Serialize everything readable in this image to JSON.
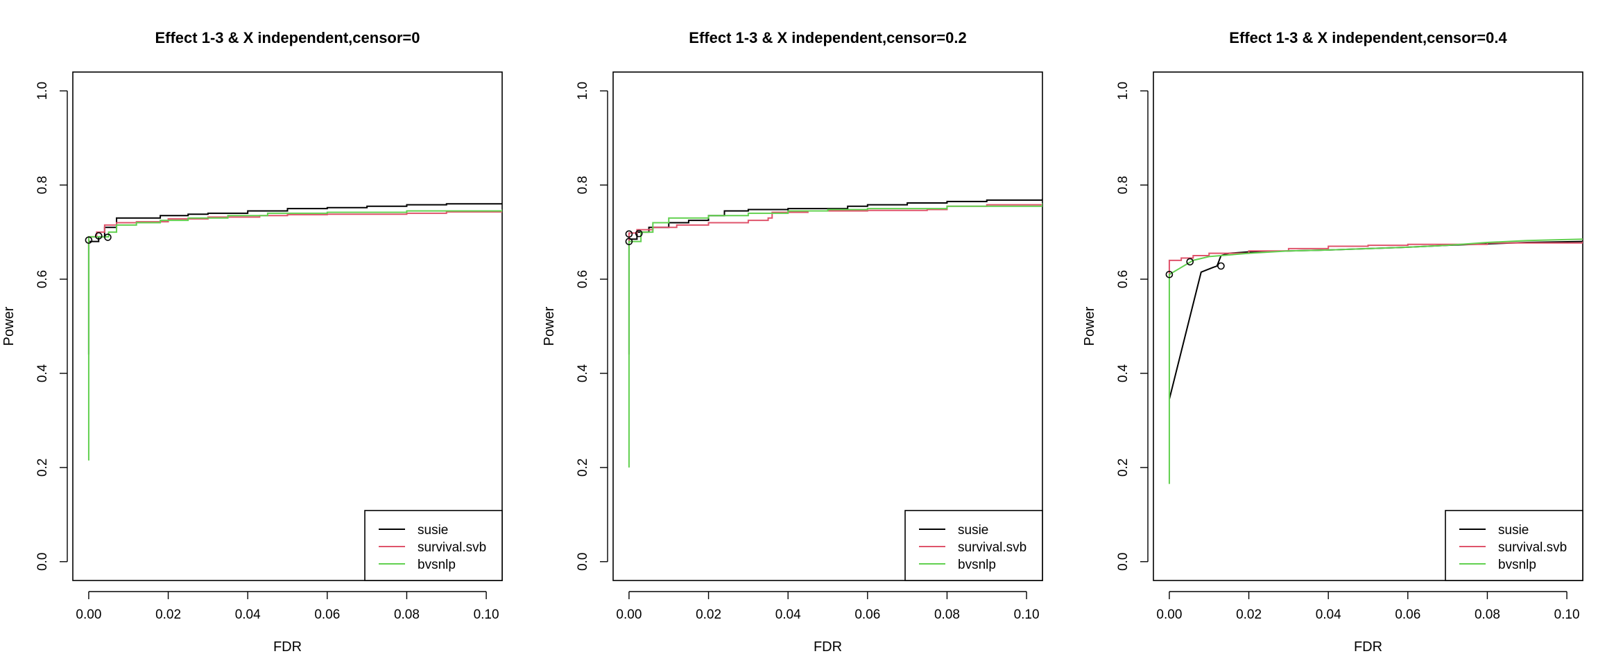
{
  "colors": {
    "susie": "#000000",
    "survival.svb": "#DF536B",
    "bvsnlp": "#61D04F"
  },
  "chart_data": [
    {
      "type": "line",
      "title": "Effect 1-3 & X independent,censor=0",
      "xlabel": "FDR",
      "ylabel": "Power",
      "xlim": [
        -0.004,
        0.104
      ],
      "ylim": [
        -0.04,
        1.04
      ],
      "xticks": [
        0.0,
        0.02,
        0.04,
        0.06,
        0.08,
        0.1
      ],
      "xtick_labels": [
        "0.00",
        "0.02",
        "0.04",
        "0.06",
        "0.08",
        "0.10"
      ],
      "yticks": [
        0.0,
        0.2,
        0.4,
        0.6,
        0.8,
        1.0
      ],
      "ytick_labels": [
        "0.0",
        "0.2",
        "0.4",
        "0.6",
        "0.8",
        "1.0"
      ],
      "grid": false,
      "legend_position": "bottom-right",
      "series": [
        {
          "name": "susie",
          "color": "#000000",
          "step": true,
          "x": [
            0.0,
            0.0,
            0.0015,
            0.0025,
            0.004,
            0.007,
            0.018,
            0.025,
            0.03,
            0.04,
            0.05,
            0.06,
            0.07,
            0.08,
            0.09,
            0.104
          ],
          "y": [
            0.44,
            0.68,
            0.68,
            0.69,
            0.71,
            0.73,
            0.735,
            0.738,
            0.74,
            0.745,
            0.75,
            0.752,
            0.755,
            0.758,
            0.76,
            0.762
          ]
        },
        {
          "name": "survival.svb",
          "color": "#DF536B",
          "step": true,
          "x": [
            0.0,
            0.0,
            0.002,
            0.004,
            0.007,
            0.012,
            0.02,
            0.03,
            0.043,
            0.05,
            0.06,
            0.08,
            0.09,
            0.104
          ],
          "y": [
            0.67,
            0.69,
            0.7,
            0.715,
            0.72,
            0.722,
            0.728,
            0.732,
            0.735,
            0.737,
            0.738,
            0.74,
            0.743,
            0.745
          ]
        },
        {
          "name": "bvsnlp",
          "color": "#61D04F",
          "step": true,
          "x": [
            0.0,
            0.0,
            0.0,
            0.003,
            0.005,
            0.007,
            0.012,
            0.018,
            0.025,
            0.035,
            0.045,
            0.06,
            0.08,
            0.104
          ],
          "y": [
            0.215,
            0.68,
            0.69,
            0.69,
            0.7,
            0.715,
            0.72,
            0.725,
            0.73,
            0.735,
            0.74,
            0.742,
            0.745,
            0.748
          ]
        }
      ],
      "markers": [
        {
          "x": 0.0,
          "y": 0.683
        },
        {
          "x": 0.0025,
          "y": 0.692
        },
        {
          "x": 0.0048,
          "y": 0.689
        }
      ]
    },
    {
      "type": "line",
      "title": "Effect 1-3 & X independent,censor=0.2",
      "xlabel": "FDR",
      "ylabel": "Power",
      "xlim": [
        -0.004,
        0.104
      ],
      "ylim": [
        -0.04,
        1.04
      ],
      "xticks": [
        0.0,
        0.02,
        0.04,
        0.06,
        0.08,
        0.1
      ],
      "xtick_labels": [
        "0.00",
        "0.02",
        "0.04",
        "0.06",
        "0.08",
        "0.10"
      ],
      "yticks": [
        0.0,
        0.2,
        0.4,
        0.6,
        0.8,
        1.0
      ],
      "ytick_labels": [
        "0.0",
        "0.2",
        "0.4",
        "0.6",
        "0.8",
        "1.0"
      ],
      "grid": false,
      "legend_position": "bottom-right",
      "series": [
        {
          "name": "susie",
          "color": "#000000",
          "step": true,
          "x": [
            0.0,
            0.0,
            0.002,
            0.005,
            0.01,
            0.015,
            0.02,
            0.024,
            0.03,
            0.04,
            0.055,
            0.06,
            0.07,
            0.08,
            0.09,
            0.104
          ],
          "y": [
            0.44,
            0.685,
            0.7,
            0.71,
            0.72,
            0.725,
            0.735,
            0.745,
            0.748,
            0.75,
            0.755,
            0.758,
            0.762,
            0.765,
            0.768,
            0.771
          ]
        },
        {
          "name": "survival.svb",
          "color": "#DF536B",
          "step": true,
          "x": [
            0.0,
            0.0,
            0.002,
            0.006,
            0.012,
            0.02,
            0.03,
            0.035,
            0.036,
            0.045,
            0.06,
            0.075,
            0.08,
            0.09,
            0.104
          ],
          "y": [
            0.67,
            0.698,
            0.705,
            0.71,
            0.715,
            0.72,
            0.725,
            0.73,
            0.742,
            0.745,
            0.746,
            0.748,
            0.755,
            0.758,
            0.762
          ]
        },
        {
          "name": "bvsnlp",
          "color": "#61D04F",
          "step": true,
          "x": [
            0.0,
            0.0,
            0.0,
            0.003,
            0.006,
            0.01,
            0.02,
            0.03,
            0.04,
            0.05,
            0.06,
            0.08,
            0.104
          ],
          "y": [
            0.2,
            0.39,
            0.68,
            0.7,
            0.72,
            0.73,
            0.735,
            0.74,
            0.745,
            0.748,
            0.75,
            0.755,
            0.762
          ]
        }
      ],
      "markers": [
        {
          "x": 0.0,
          "y": 0.68
        },
        {
          "x": 0.0,
          "y": 0.696
        },
        {
          "x": 0.0025,
          "y": 0.697
        }
      ]
    },
    {
      "type": "line",
      "title": "Effect 1-3 & X independent,censor=0.4",
      "xlabel": "FDR",
      "ylabel": "Power",
      "xlim": [
        -0.004,
        0.104
      ],
      "ylim": [
        -0.04,
        1.04
      ],
      "xticks": [
        0.0,
        0.02,
        0.04,
        0.06,
        0.08,
        0.1
      ],
      "xtick_labels": [
        "0.00",
        "0.02",
        "0.04",
        "0.06",
        "0.08",
        "0.10"
      ],
      "yticks": [
        0.0,
        0.2,
        0.4,
        0.6,
        0.8,
        1.0
      ],
      "ytick_labels": [
        "0.0",
        "0.2",
        "0.4",
        "0.6",
        "0.8",
        "1.0"
      ],
      "grid": false,
      "legend_position": "bottom-right",
      "series": [
        {
          "name": "susie",
          "color": "#000000",
          "step": false,
          "x": [
            0.0,
            0.008,
            0.0095,
            0.011,
            0.012,
            0.013,
            0.015,
            0.02,
            0.03,
            0.04,
            0.05,
            0.06,
            0.07,
            0.08,
            0.09,
            0.104
          ],
          "y": [
            0.345,
            0.615,
            0.62,
            0.625,
            0.628,
            0.65,
            0.655,
            0.658,
            0.66,
            0.662,
            0.665,
            0.668,
            0.672,
            0.675,
            0.678,
            0.68
          ]
        },
        {
          "name": "survival.svb",
          "color": "#DF536B",
          "step": true,
          "x": [
            0.0,
            0.0,
            0.003,
            0.006,
            0.01,
            0.02,
            0.03,
            0.04,
            0.05,
            0.06,
            0.08,
            0.104
          ],
          "y": [
            0.6,
            0.64,
            0.645,
            0.65,
            0.655,
            0.66,
            0.665,
            0.67,
            0.672,
            0.674,
            0.677,
            0.68
          ]
        },
        {
          "name": "bvsnlp",
          "color": "#61D04F",
          "step": false,
          "x": [
            0.0,
            0.0,
            0.0,
            0.002,
            0.004,
            0.006,
            0.01,
            0.02,
            0.03,
            0.04,
            0.05,
            0.06,
            0.07,
            0.08,
            0.09,
            0.104
          ],
          "y": [
            0.165,
            0.45,
            0.61,
            0.62,
            0.63,
            0.64,
            0.648,
            0.655,
            0.66,
            0.662,
            0.665,
            0.668,
            0.672,
            0.678,
            0.682,
            0.685
          ]
        }
      ],
      "markers": [
        {
          "x": 0.0,
          "y": 0.61
        },
        {
          "x": 0.0052,
          "y": 0.637
        },
        {
          "x": 0.013,
          "y": 0.628
        }
      ]
    }
  ]
}
